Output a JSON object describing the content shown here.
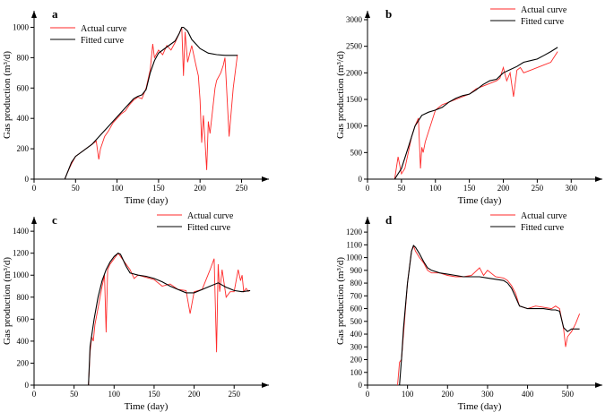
{
  "colors": {
    "actual": "#ff2a2a",
    "fitted": "#000000"
  },
  "chart_data": [
    {
      "type": "line",
      "panel_label": "a",
      "xlabel": "Time (day)",
      "ylabel": "Gas production (m³/d)",
      "xlim": [
        0,
        270
      ],
      "ylim": [
        0,
        1050
      ],
      "xticks": [
        0,
        50,
        100,
        150,
        200,
        250
      ],
      "yticks": [
        0,
        200,
        400,
        600,
        800,
        1000
      ],
      "legend_position": "top-left",
      "series": [
        {
          "name": "Actual curve",
          "x": [
            37,
            40,
            45,
            50,
            55,
            60,
            65,
            70,
            75,
            78,
            80,
            85,
            90,
            95,
            100,
            105,
            110,
            115,
            120,
            125,
            130,
            135,
            140,
            143,
            145,
            150,
            155,
            160,
            165,
            170,
            175,
            178,
            180,
            182,
            185,
            190,
            195,
            198,
            200,
            202,
            204,
            206,
            208,
            210,
            212,
            215,
            218,
            220,
            225,
            228,
            230,
            232,
            235,
            240,
            245
          ],
          "y": [
            0,
            40,
            100,
            150,
            170,
            190,
            210,
            230,
            250,
            130,
            200,
            280,
            320,
            370,
            400,
            430,
            450,
            490,
            520,
            540,
            530,
            600,
            720,
            890,
            800,
            850,
            820,
            880,
            850,
            900,
            960,
            1000,
            680,
            970,
            770,
            880,
            750,
            680,
            520,
            240,
            420,
            250,
            60,
            380,
            300,
            450,
            600,
            650,
            700,
            750,
            800,
            600,
            280,
            600,
            820
          ]
        },
        {
          "name": "Fitted curve",
          "x": [
            37,
            40,
            45,
            50,
            60,
            70,
            80,
            90,
            100,
            110,
            120,
            125,
            130,
            135,
            140,
            145,
            150,
            160,
            170,
            175,
            178,
            180,
            185,
            190,
            200,
            210,
            220,
            230,
            240,
            245
          ],
          "y": [
            0,
            40,
            110,
            150,
            190,
            230,
            290,
            350,
            410,
            470,
            530,
            545,
            555,
            590,
            700,
            780,
            830,
            870,
            910,
            960,
            1000,
            1000,
            975,
            920,
            860,
            830,
            820,
            815,
            815,
            815
          ]
        }
      ]
    },
    {
      "type": "line",
      "panel_label": "b",
      "xlabel": "Time (day)",
      "ylabel": "Gas production (m³/d)",
      "xlim": [
        0,
        330
      ],
      "ylim": [
        0,
        3000
      ],
      "xticks": [
        0,
        50,
        100,
        150,
        200,
        250,
        300
      ],
      "yticks": [
        0,
        500,
        1000,
        1500,
        2000,
        2500,
        3000
      ],
      "legend_position": "top-right",
      "series": [
        {
          "name": "Actual curve",
          "x": [
            40,
            45,
            50,
            55,
            60,
            65,
            70,
            75,
            78,
            80,
            82,
            85,
            90,
            95,
            100,
            110,
            120,
            130,
            140,
            150,
            160,
            170,
            180,
            190,
            195,
            200,
            205,
            210,
            215,
            220,
            225,
            230,
            240,
            250,
            260,
            270,
            280
          ],
          "y": [
            0,
            420,
            100,
            200,
            500,
            800,
            1000,
            1150,
            200,
            600,
            500,
            700,
            900,
            1100,
            1300,
            1400,
            1450,
            1500,
            1550,
            1600,
            1700,
            1750,
            1800,
            1850,
            1900,
            2100,
            1850,
            2000,
            1550,
            2050,
            2100,
            2000,
            2050,
            2100,
            2150,
            2200,
            2400
          ]
        },
        {
          "name": "Fitted curve",
          "x": [
            40,
            50,
            60,
            70,
            80,
            90,
            100,
            110,
            120,
            130,
            140,
            150,
            160,
            170,
            180,
            190,
            200,
            210,
            220,
            230,
            240,
            250,
            260,
            270,
            280
          ],
          "y": [
            0,
            200,
            600,
            1000,
            1200,
            1260,
            1300,
            1350,
            1450,
            1520,
            1570,
            1600,
            1680,
            1780,
            1850,
            1880,
            2000,
            2060,
            2120,
            2200,
            2230,
            2260,
            2330,
            2400,
            2480
          ]
        }
      ]
    },
    {
      "type": "line",
      "panel_label": "c",
      "xlabel": "Time (day)",
      "ylabel": "Gas production (m³/d)",
      "xlim": [
        0,
        280
      ],
      "ylim": [
        0,
        1450
      ],
      "xticks": [
        0,
        50,
        100,
        150,
        200,
        250
      ],
      "yticks": [
        0,
        200,
        400,
        600,
        800,
        1000,
        1200,
        1400
      ],
      "legend_position": "top-right",
      "series": [
        {
          "name": "Actual curve",
          "x": [
            68,
            70,
            72,
            74,
            76,
            80,
            85,
            88,
            90,
            92,
            95,
            100,
            105,
            108,
            110,
            115,
            120,
            125,
            130,
            140,
            150,
            160,
            170,
            180,
            190,
            195,
            200,
            210,
            220,
            225,
            228,
            230,
            232,
            235,
            240,
            245,
            250,
            255,
            258,
            260,
            262,
            265,
            268
          ],
          "y": [
            0,
            300,
            440,
            400,
            550,
            700,
            900,
            1000,
            480,
            1050,
            1100,
            1150,
            1200,
            1170,
            1150,
            1100,
            1050,
            970,
            1000,
            980,
            960,
            900,
            920,
            870,
            860,
            650,
            850,
            870,
            1050,
            1150,
            300,
            1100,
            850,
            1050,
            800,
            850,
            850,
            1050,
            950,
            1000,
            850,
            880,
            850
          ]
        },
        {
          "name": "Fitted curve",
          "x": [
            68,
            70,
            75,
            80,
            85,
            90,
            95,
            100,
            105,
            108,
            110,
            115,
            120,
            130,
            140,
            150,
            160,
            170,
            180,
            190,
            200,
            210,
            220,
            230,
            240,
            250,
            260,
            270
          ],
          "y": [
            0,
            350,
            600,
            800,
            950,
            1050,
            1120,
            1170,
            1200,
            1190,
            1160,
            1080,
            1020,
            1000,
            990,
            970,
            940,
            900,
            870,
            840,
            840,
            870,
            900,
            930,
            890,
            860,
            850,
            860
          ]
        }
      ]
    },
    {
      "type": "line",
      "panel_label": "d",
      "xlabel": "Time (day)",
      "ylabel": "Gas production (m³/d)",
      "xlim": [
        0,
        560
      ],
      "ylim": [
        0,
        1250
      ],
      "xticks": [
        0,
        100,
        200,
        300,
        400,
        500
      ],
      "yticks": [
        0,
        100,
        200,
        300,
        400,
        500,
        600,
        700,
        800,
        900,
        1000,
        1100,
        1200
      ],
      "legend_position": "top-right",
      "series": [
        {
          "name": "Actual curve",
          "x": [
            75,
            80,
            85,
            90,
            100,
            110,
            115,
            120,
            130,
            140,
            150,
            160,
            180,
            200,
            220,
            240,
            260,
            280,
            290,
            300,
            320,
            340,
            350,
            360,
            370,
            380,
            400,
            420,
            440,
            460,
            470,
            480,
            490,
            495,
            500,
            510,
            520,
            530
          ],
          "y": [
            0,
            180,
            200,
            400,
            800,
            1050,
            1090,
            1050,
            1000,
            960,
            900,
            880,
            880,
            860,
            850,
            850,
            860,
            920,
            860,
            900,
            850,
            840,
            820,
            780,
            720,
            620,
            600,
            620,
            610,
            600,
            620,
            600,
            440,
            300,
            380,
            420,
            480,
            560
          ]
        },
        {
          "name": "Fitted curve",
          "x": [
            80,
            85,
            90,
            100,
            110,
            115,
            120,
            130,
            140,
            150,
            160,
            180,
            200,
            220,
            240,
            260,
            280,
            300,
            320,
            340,
            350,
            360,
            370,
            380,
            400,
            420,
            440,
            460,
            470,
            480,
            490,
            500,
            510,
            520,
            530
          ],
          "y": [
            0,
            200,
            450,
            800,
            1050,
            1095,
            1080,
            1030,
            970,
            920,
            900,
            880,
            870,
            860,
            850,
            850,
            850,
            840,
            830,
            820,
            800,
            760,
            690,
            620,
            600,
            600,
            600,
            590,
            590,
            580,
            450,
            420,
            440,
            440,
            440
          ]
        }
      ]
    }
  ]
}
